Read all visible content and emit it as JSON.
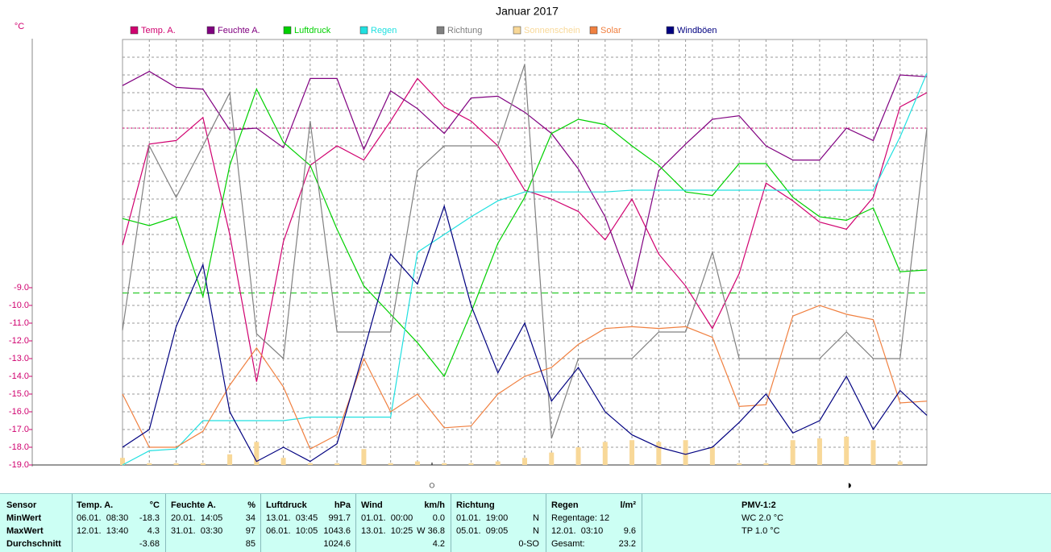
{
  "chart_data": {
    "type": "line",
    "title": "Januar 2017",
    "y_label": "°C",
    "categories": [
      null,
      null,
      null,
      null,
      null,
      null,
      null,
      null,
      null,
      null,
      null,
      null,
      null,
      null,
      null,
      null,
      null,
      null,
      null,
      null,
      null,
      null,
      null,
      null,
      null,
      null,
      null,
      null,
      null,
      null,
      null
    ],
    "ylim": [
      -19,
      5
    ],
    "grid": true,
    "grid_step": 1,
    "yticks": [
      {
        "value": -9,
        "label": "-9.0"
      },
      {
        "value": -10,
        "label": "-10.0"
      },
      {
        "value": -11,
        "label": "-11.0"
      },
      {
        "value": -12,
        "label": "-12.0"
      },
      {
        "value": -13,
        "label": "-13.0"
      },
      {
        "value": -14,
        "label": "-14.0"
      },
      {
        "value": -15,
        "label": "-15.0"
      },
      {
        "value": -16,
        "label": "-16.0"
      },
      {
        "value": -17,
        "label": "-17.0"
      },
      {
        "value": -18,
        "label": "-18.0"
      },
      {
        "value": -19,
        "label": "-19.0"
      }
    ],
    "reference_lines": [
      {
        "value": 0,
        "color": "#d0006f",
        "dash": "2,3"
      },
      {
        "value": -9.3,
        "color": "#00c000",
        "dash": "8,5"
      }
    ],
    "series": [
      {
        "name": "Temp. A.",
        "color": "#d0006f",
        "values": [
          -6.6,
          -0.9,
          -0.7,
          0.6,
          -6.0,
          -14.3,
          -6.4,
          -2.1,
          -1.0,
          -1.8,
          0.4,
          2.8,
          1.2,
          0.4,
          -1.0,
          -3.5,
          -4.0,
          -4.7,
          -6.3,
          -4.0,
          -7.1,
          -8.9,
          -11.3,
          -8.2,
          -3.1,
          -4.1,
          -5.3,
          -5.7,
          -3.9,
          1.2,
          2.0
        ]
      },
      {
        "name": "Feuchte A.",
        "color": "#800080",
        "values": [
          2.4,
          3.2,
          2.3,
          2.2,
          -0.1,
          0.0,
          -1.1,
          2.8,
          2.8,
          -1.2,
          2.1,
          1.1,
          -0.3,
          1.7,
          1.8,
          0.9,
          -0.3,
          -2.3,
          -5.0,
          -9.1,
          -2.4,
          -0.9,
          0.5,
          0.7,
          -1.0,
          -1.8,
          -1.8,
          0.0,
          -0.7,
          3.0,
          2.9
        ]
      },
      {
        "name": "Luftdruck",
        "color": "#00d000",
        "values": [
          -5.1,
          -5.5,
          -5.0,
          -9.5,
          -2.1,
          2.2,
          -0.8,
          -2.1,
          -5.7,
          -8.9,
          -10.5,
          -12.1,
          -14.0,
          -10.4,
          -6.5,
          -3.9,
          -0.3,
          0.5,
          0.2,
          -1.0,
          -2.1,
          -3.6,
          -3.8,
          -2.0,
          -2.0,
          -3.9,
          -5.0,
          -5.2,
          -4.5,
          -8.1,
          -8.0
        ]
      },
      {
        "name": "Regen",
        "color": "#20e0e0",
        "values": [
          -19.0,
          -18.2,
          -18.1,
          -16.5,
          -16.5,
          -16.5,
          -16.5,
          -16.3,
          -16.3,
          -16.3,
          -16.3,
          -7.0,
          -6.0,
          -5.0,
          -4.1,
          -3.6,
          -3.6,
          -3.6,
          -3.6,
          -3.5,
          -3.5,
          -3.5,
          -3.5,
          -3.5,
          -3.5,
          -3.5,
          -3.5,
          -3.5,
          -3.5,
          -0.5,
          3.1
        ]
      },
      {
        "name": "Richtung",
        "color": "#808080",
        "values": [
          -11.4,
          -1.0,
          -3.9,
          -1.0,
          2.0,
          -11.6,
          -13.0,
          0.4,
          -11.5,
          -11.5,
          -11.5,
          -2.4,
          -1.0,
          -1.0,
          -1.0,
          3.6,
          -17.5,
          -13.0,
          -13.0,
          -13.0,
          -11.5,
          -11.5,
          -7.0,
          -13.0,
          -13.0,
          -13.0,
          -13.0,
          -11.5,
          -13.0,
          -13.0,
          0.0
        ]
      },
      {
        "name": "Sonnenschein",
        "color": "#f8d898",
        "style": "bar",
        "values": [
          -18.6,
          -18.9,
          -18.9,
          -18.9,
          -18.4,
          -17.7,
          -18.6,
          -18.9,
          -18.9,
          -18.1,
          -18.9,
          -18.8,
          -18.9,
          -18.9,
          -18.8,
          -18.6,
          -18.3,
          -18.0,
          -17.7,
          -17.6,
          -17.7,
          -17.6,
          -18.0,
          -18.9,
          -18.9,
          -17.6,
          -17.5,
          -17.4,
          -17.6,
          -18.8,
          -19.0
        ]
      },
      {
        "name": "Solar",
        "color": "#f08040",
        "values": [
          -15.0,
          -18.0,
          -18.0,
          -17.1,
          -14.5,
          -12.4,
          -14.6,
          -18.1,
          -17.3,
          -13.0,
          -16.0,
          -15.0,
          -16.9,
          -16.8,
          -15.0,
          -14.0,
          -13.5,
          -12.2,
          -11.3,
          -11.2,
          -11.3,
          -11.2,
          -11.8,
          -15.7,
          -15.6,
          -10.6,
          -10.0,
          -10.5,
          -10.8,
          -15.5,
          -15.4
        ]
      },
      {
        "name": "Windböen",
        "color": "#000080",
        "values": [
          -18.0,
          -17.0,
          -11.2,
          -7.7,
          -16.0,
          -18.8,
          -18.0,
          -18.8,
          -17.8,
          -12.6,
          -7.1,
          -8.8,
          -4.4,
          -10.0,
          -13.8,
          -11.0,
          -15.4,
          -13.5,
          -16.0,
          -17.3,
          -18.0,
          -18.4,
          -18.0,
          -16.6,
          -15.0,
          -17.2,
          -16.5,
          -14.0,
          -17.0,
          -14.8,
          -16.2
        ]
      }
    ],
    "moon_phases": [
      "○",
      "◑"
    ]
  },
  "table": {
    "header": {
      "label": "Sensor",
      "columns": [
        [
          "Temp. A.",
          "°C"
        ],
        [
          "Feuchte A.",
          "%"
        ],
        [
          "Luftdruck",
          "hPa"
        ],
        [
          "Wind",
          "km/h"
        ],
        [
          "Richtung",
          null
        ],
        [
          "Regen",
          "l/m²"
        ],
        [
          "PMV-1:2",
          null
        ]
      ]
    },
    "rows": [
      {
        "label": "MinWert",
        "cells": [
          [
            "06.01.  08:30",
            "-18.3"
          ],
          [
            "20.01.  14:05",
            "34"
          ],
          [
            "13.01.  03:45",
            "991.7"
          ],
          [
            "01.01.  00:00",
            "0.0"
          ],
          [
            "01.01.  19:00",
            "N"
          ],
          [
            "Regentage: 12",
            null
          ],
          [
            "WC 2.0 °C",
            null
          ]
        ]
      },
      {
        "label": "MaxWert",
        "cells": [
          [
            "12.01.  13:40",
            "4.3"
          ],
          [
            "31.01.  03:30",
            "97"
          ],
          [
            "06.01.  10:05",
            "1043.6"
          ],
          [
            "13.01.  10:25",
            "W 36.8"
          ],
          [
            "05.01.  09:05",
            "N"
          ],
          [
            "12.01.  03:10",
            "9.6"
          ],
          [
            "TP 1.0 °C",
            null
          ]
        ]
      },
      {
        "label": "Durchschnitt",
        "cells": [
          [
            null,
            "-3.68"
          ],
          [
            null,
            "85"
          ],
          [
            null,
            "1024.6"
          ],
          [
            null,
            "4.2"
          ],
          [
            null,
            "0-SO"
          ],
          [
            "Gesamt:",
            "23.2"
          ],
          [
            null,
            null
          ]
        ]
      }
    ]
  }
}
